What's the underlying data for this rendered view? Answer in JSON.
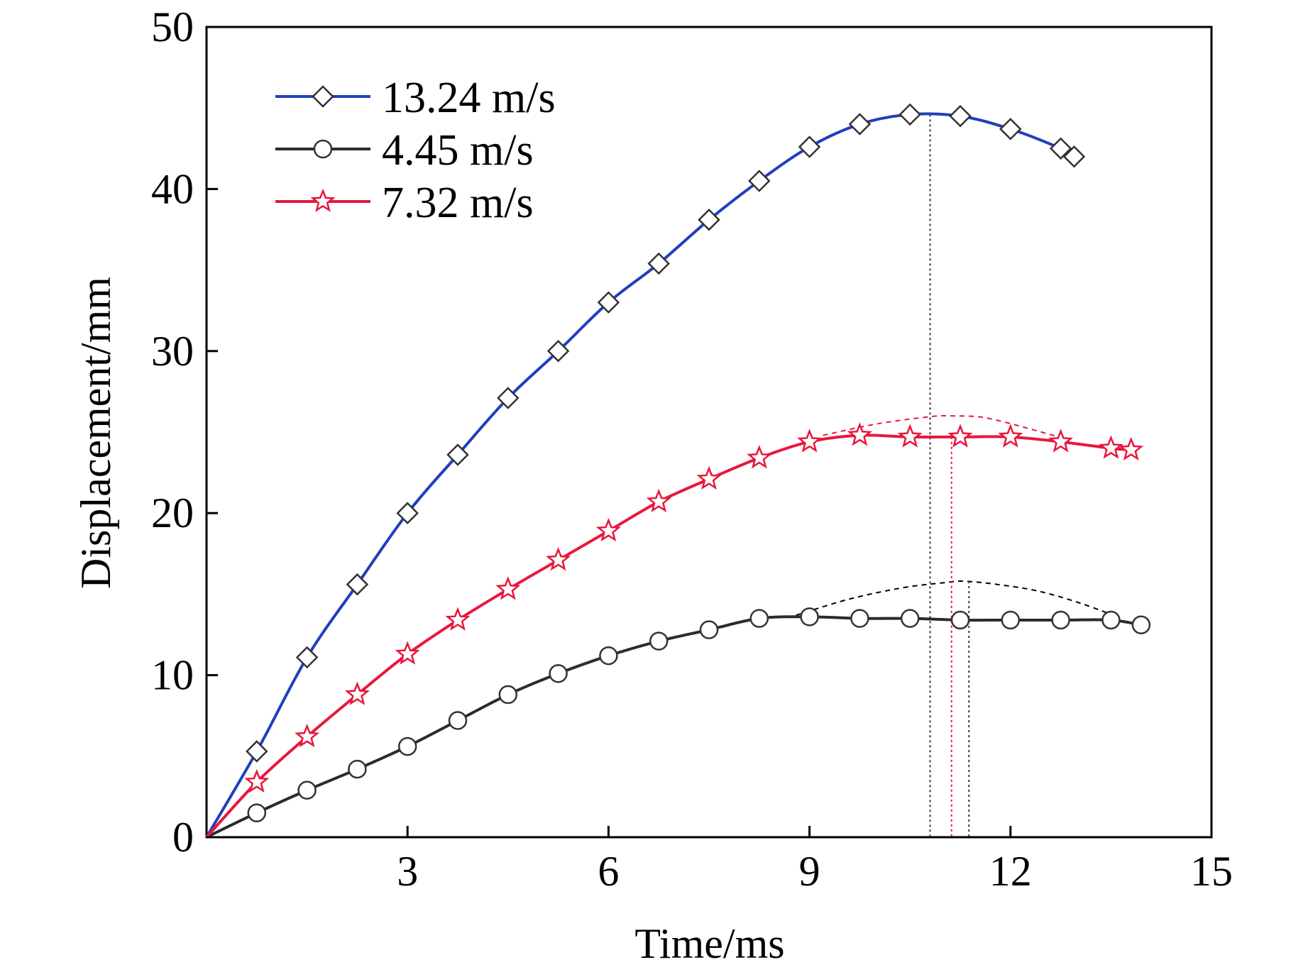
{
  "chart_data": {
    "type": "line",
    "title": "",
    "xlabel": "Time/ms",
    "ylabel": "Displacement/mm",
    "xlim": [
      0,
      15
    ],
    "ylim": [
      0,
      50
    ],
    "xticks": [
      3,
      6,
      9,
      12,
      15
    ],
    "yticks": [
      0,
      10,
      20,
      30,
      40,
      50
    ],
    "xtick_labels": [
      "3",
      "6",
      "9",
      "12",
      "15"
    ],
    "ytick_labels": [
      "0",
      "10",
      "20",
      "30",
      "40",
      "50"
    ],
    "grid": false,
    "legend_position": "top-left",
    "series": [
      {
        "name": "13.24 m/s",
        "color": "#1f3fbf",
        "marker": "diamond",
        "x": [
          0.0,
          0.75,
          1.5,
          2.25,
          3.0,
          3.75,
          4.5,
          5.25,
          6.0,
          6.75,
          7.5,
          8.25,
          9.0,
          9.75,
          10.5,
          11.25,
          12.0,
          12.75,
          12.95
        ],
        "y": [
          0.0,
          5.3,
          11.1,
          15.6,
          20.0,
          23.6,
          27.1,
          30.0,
          33.0,
          35.4,
          38.1,
          40.5,
          42.6,
          44.0,
          44.6,
          44.5,
          43.7,
          42.5,
          42.0
        ]
      },
      {
        "name": "4.45 m/s",
        "color": "#2b2b2b",
        "marker": "circle",
        "x": [
          0.0,
          0.75,
          1.5,
          2.25,
          3.0,
          3.75,
          4.5,
          5.25,
          6.0,
          6.75,
          7.5,
          8.25,
          9.0,
          9.75,
          10.5,
          11.25,
          12.0,
          12.75,
          13.5,
          13.95
        ],
        "y": [
          0.0,
          1.5,
          2.9,
          4.2,
          5.6,
          7.2,
          8.8,
          10.1,
          11.2,
          12.1,
          12.8,
          13.5,
          13.6,
          13.5,
          13.5,
          13.4,
          13.4,
          13.4,
          13.4,
          13.1
        ]
      },
      {
        "name": "7.32 m/s",
        "color": "#e8173c",
        "marker": "star",
        "x": [
          0.0,
          0.75,
          1.5,
          2.25,
          3.0,
          3.75,
          4.5,
          5.25,
          6.0,
          6.75,
          7.5,
          8.25,
          9.0,
          9.75,
          10.5,
          11.25,
          12.0,
          12.75,
          13.5,
          13.8
        ],
        "y": [
          0.0,
          3.4,
          6.2,
          8.8,
          11.3,
          13.4,
          15.3,
          17.1,
          18.9,
          20.7,
          22.1,
          23.4,
          24.4,
          24.8,
          24.7,
          24.7,
          24.7,
          24.4,
          24.0,
          23.9
        ]
      }
    ],
    "annotations": [
      {
        "type": "dashed-curve",
        "color": "#e8173c",
        "x": [
          9.2,
          10.0,
          10.8,
          11.1,
          11.6,
          12.2,
          12.8
        ],
        "y": [
          24.8,
          25.5,
          25.95,
          26.0,
          25.9,
          25.3,
          24.6
        ]
      },
      {
        "type": "dashed-curve",
        "color": "#000000",
        "x": [
          8.8,
          9.6,
          10.4,
          11.0,
          11.3,
          11.8,
          12.4,
          13.0,
          13.6
        ],
        "y": [
          13.7,
          14.7,
          15.4,
          15.7,
          15.8,
          15.6,
          15.2,
          14.5,
          13.6
        ]
      },
      {
        "type": "vline",
        "color": "#333333",
        "x": 10.8,
        "y_top": 44.6
      },
      {
        "type": "vline",
        "color": "#e8173c",
        "x": 11.12,
        "y_top": 24.7
      },
      {
        "type": "vline",
        "color": "#333333",
        "x": 11.38,
        "y_top": 15.8
      }
    ]
  }
}
